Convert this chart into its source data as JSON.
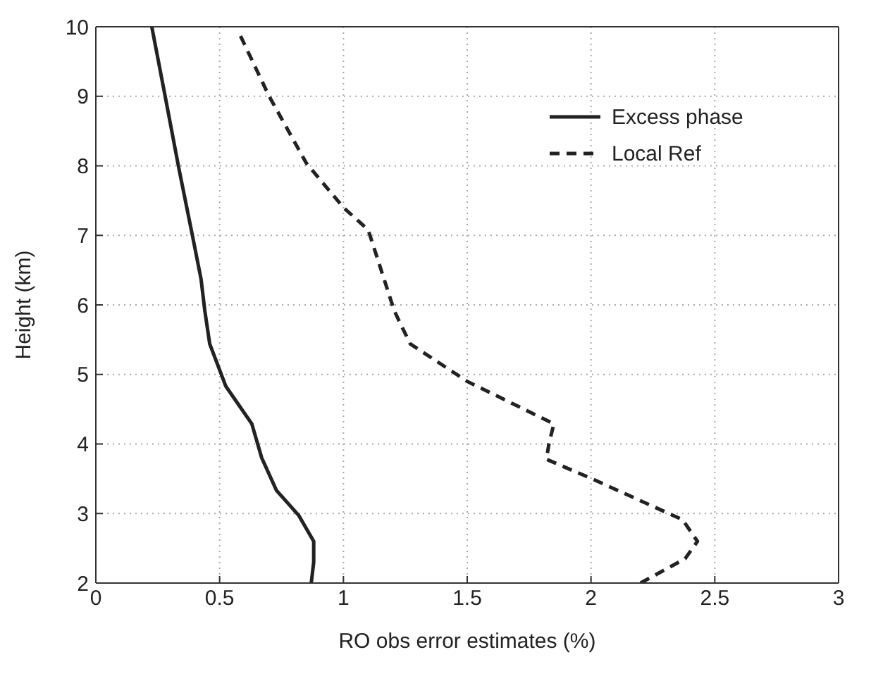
{
  "chart_data": {
    "type": "line",
    "xlabel": "RO obs error estimates (%)",
    "ylabel": "Height (km)",
    "xlim": [
      0,
      3
    ],
    "xticks": [
      0,
      0.5,
      1,
      1.5,
      2,
      2.5,
      3
    ],
    "ylim": [
      2,
      10
    ],
    "yticks": [
      2,
      3,
      4,
      5,
      6,
      7,
      8,
      9,
      10
    ],
    "grid": true,
    "legend": "top right",
    "marker": "none",
    "series": [
      {
        "name": "Excess phase",
        "color": "#222222",
        "line_style": "solid",
        "x": [
          0.87,
          0.88,
          0.88,
          0.82,
          0.73,
          0.67,
          0.63,
          0.525,
          0.46,
          0.44,
          0.425,
          0.39,
          0.335,
          0.28,
          0.226
        ],
        "values": [
          2.0,
          2.3,
          2.6,
          2.97,
          3.33,
          3.8,
          4.29,
          4.83,
          5.44,
          5.92,
          6.37,
          7.0,
          7.97,
          9.0,
          10.0
        ]
      },
      {
        "name": "Local Ref",
        "color": "#222222",
        "line_style": "dashed",
        "x": [
          2.2,
          2.38,
          2.43,
          2.37,
          2.01,
          1.82,
          1.83,
          1.85,
          1.5,
          1.27,
          1.23,
          1.205,
          1.1,
          1.0,
          0.85,
          0.7,
          0.58
        ],
        "values": [
          2.0,
          2.35,
          2.6,
          2.91,
          3.49,
          3.78,
          4.0,
          4.29,
          4.9,
          5.44,
          5.73,
          5.92,
          7.08,
          7.4,
          8.04,
          9.0,
          9.9
        ]
      }
    ]
  }
}
